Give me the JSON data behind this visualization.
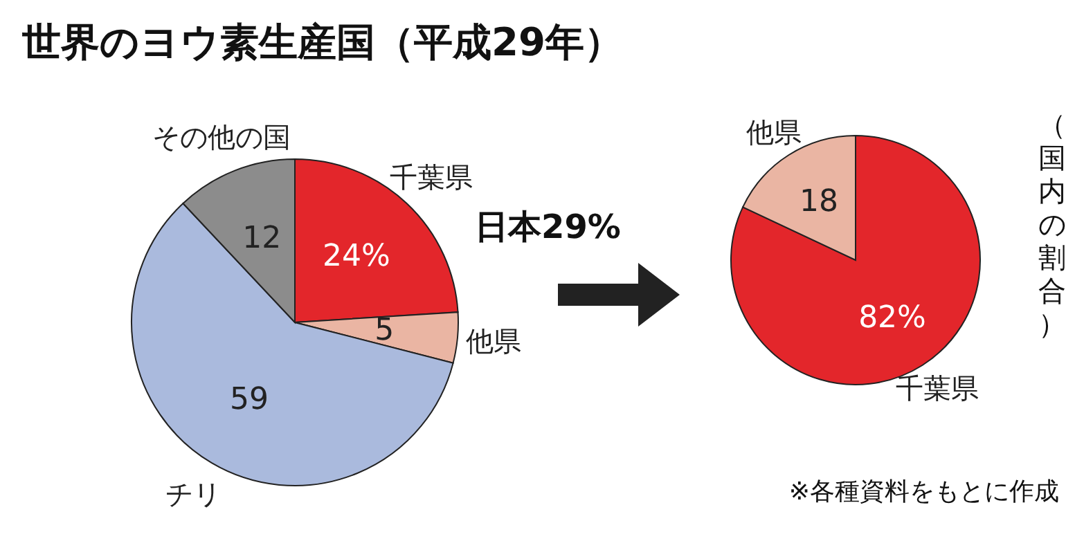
{
  "chart_data": [
    {
      "type": "pie",
      "title": "世界のヨウ素生産国（平成29年）",
      "categories": [
        "千葉県",
        "他県",
        "チリ",
        "その他の国"
      ],
      "values": [
        24,
        5,
        59,
        12
      ],
      "colors": [
        "#e3262b",
        "#eab5a3",
        "#aabadd",
        "#8c8c8c"
      ],
      "value_labels": [
        "24%",
        "5",
        "59",
        "12"
      ],
      "annotations": [
        "日本29%"
      ]
    },
    {
      "type": "pie",
      "categories": [
        "千葉県",
        "他県"
      ],
      "values": [
        82,
        18
      ],
      "colors": [
        "#e3262b",
        "#eab5a3"
      ],
      "value_labels": [
        "82%",
        "18"
      ],
      "annotations": [
        "（国内の割合）",
        "※各種資料をもとに作成"
      ]
    }
  ]
}
